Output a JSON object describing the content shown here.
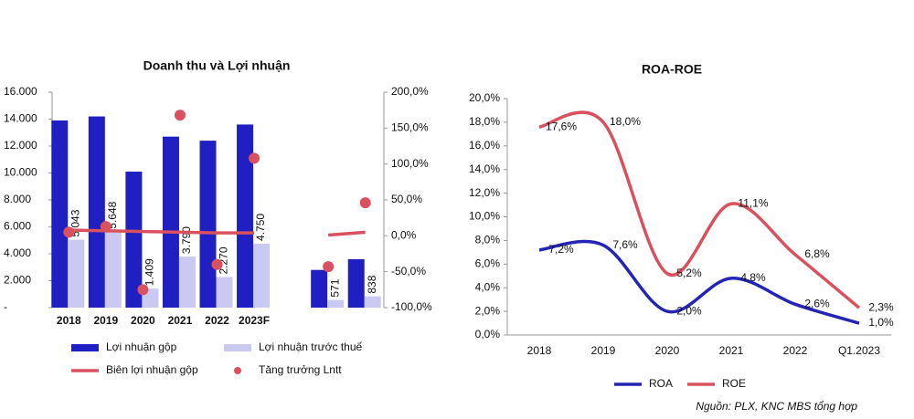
{
  "chart_data": [
    {
      "type": "bar",
      "title": "Doanh thu và Lợi nhuận",
      "categories": [
        "2018",
        "2019",
        "2020",
        "2021",
        "2022",
        "2023F",
        null,
        null,
        null
      ],
      "series": [
        {
          "name": "Lợi nhuận gộp",
          "type": "bar",
          "color": "#1f1fc2",
          "values": [
            13900,
            14200,
            10100,
            12700,
            12400,
            13600,
            null,
            2800,
            3600
          ]
        },
        {
          "name": "Lợi nhuận trước thuế",
          "type": "bar",
          "color": "#c9c9f2",
          "values": [
            5043,
            5648,
            1409,
            3790,
            2270,
            4750,
            null,
            571,
            838
          ],
          "value_labels": [
            "5.043",
            "5.648",
            "1.409",
            "3.790",
            "2.270",
            "4.750",
            null,
            "571",
            "838"
          ]
        },
        {
          "name": "Biên lợi nhuận gộp",
          "type": "line",
          "axis": "y2",
          "color": "#d9505e",
          "values": [
            8,
            7,
            6,
            5,
            4,
            4,
            null,
            1,
            5
          ]
        },
        {
          "name": "Tăng trưởng Lntt",
          "type": "scatter",
          "axis": "y2",
          "color": "#d9505e",
          "values": [
            5,
            13,
            -75,
            168,
            -40,
            108,
            null,
            -43,
            46
          ]
        }
      ],
      "ylim": [
        0,
        16000
      ],
      "yticks": [
        {
          "value": 0,
          "label": "-"
        },
        {
          "value": 2000,
          "label": "2.000"
        },
        {
          "value": 4000,
          "label": "4.000"
        },
        {
          "value": 6000,
          "label": "6.000"
        },
        {
          "value": 8000,
          "label": "8.000"
        },
        {
          "value": 10000,
          "label": "10.000"
        },
        {
          "value": 12000,
          "label": "12.000"
        },
        {
          "value": 14000,
          "label": "14.000"
        },
        {
          "value": 16000,
          "label": "16.000"
        }
      ],
      "y2lim": [
        -100,
        200
      ],
      "y2ticks": [
        {
          "value": -100,
          "label": "-100,0%"
        },
        {
          "value": -50,
          "label": "-50,0%"
        },
        {
          "value": 0,
          "label": "0,0%"
        },
        {
          "value": 50,
          "label": "50,0%"
        },
        {
          "value": 100,
          "label": "100,0%"
        },
        {
          "value": 150,
          "label": "150,0%"
        },
        {
          "value": 200,
          "label": "200,0%"
        }
      ],
      "legend": "bottom"
    },
    {
      "type": "line",
      "title": "ROA-ROE",
      "smooth": true,
      "categories": [
        "2018",
        "2019",
        "2020",
        "2021",
        "2022",
        "Q1.2023"
      ],
      "series": [
        {
          "name": "ROA",
          "color": "#2424b5",
          "values": [
            7.2,
            7.6,
            2.0,
            4.8,
            2.6,
            1.0
          ],
          "value_labels": [
            "7,2%",
            "7,6%",
            "2,0%",
            "4,8%",
            "2,6%",
            "1,0%"
          ]
        },
        {
          "name": "ROE",
          "color": "#d9505e",
          "values": [
            17.6,
            18.0,
            5.2,
            11.1,
            6.8,
            2.3
          ],
          "value_labels": [
            "17,6%",
            "18,0%",
            "5,2%",
            "11,1%",
            "6,8%",
            "2,3%"
          ]
        }
      ],
      "ylim": [
        0,
        20
      ],
      "yticks": [
        {
          "value": 0,
          "label": "0,0%"
        },
        {
          "value": 2,
          "label": "2,0%"
        },
        {
          "value": 4,
          "label": "4,0%"
        },
        {
          "value": 6,
          "label": "6,0%"
        },
        {
          "value": 8,
          "label": "8,0%"
        },
        {
          "value": 10,
          "label": "10,0%"
        },
        {
          "value": 12,
          "label": "12,0%"
        },
        {
          "value": 14,
          "label": "14,0%"
        },
        {
          "value": 16,
          "label": "16,0%"
        },
        {
          "value": 18,
          "label": "18,0%"
        },
        {
          "value": 20,
          "label": "20,0%"
        }
      ],
      "legend": "bottom"
    }
  ],
  "source": "Nguồn: PLX, KNC MBS tổng hợp"
}
